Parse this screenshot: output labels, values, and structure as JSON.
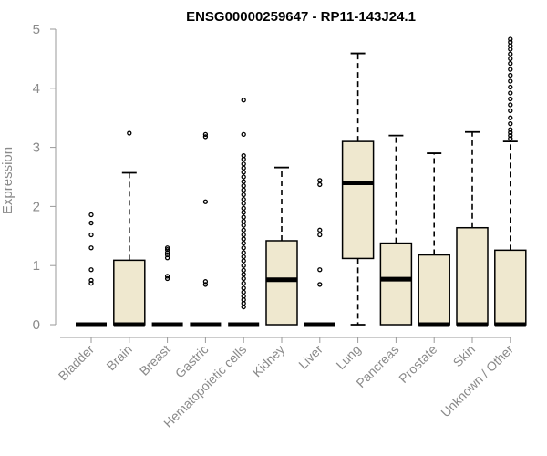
{
  "chart_data": {
    "type": "boxplot",
    "title": "ENSG00000259647 - RP11-143J24.1",
    "ylabel": "Expression",
    "xlabel": "",
    "ylim": [
      0,
      5
    ],
    "yticks": [
      0,
      1,
      2,
      3,
      4,
      5
    ],
    "box_color": "#efe8cf",
    "categories": [
      "Bladder",
      "Brain",
      "Breast",
      "Gastric",
      "Hematopoietic cells",
      "Kidney",
      "Liver",
      "Lung",
      "Pancreas",
      "Prostate",
      "Skin",
      "Unknown / Other"
    ],
    "boxes": [
      {
        "q1": 0,
        "median": 0,
        "q3": 0,
        "whisker_low": 0,
        "whisker_high": 0,
        "outliers": [
          0.7,
          0.75,
          0.93,
          1.3,
          1.52,
          1.72,
          1.86
        ]
      },
      {
        "q1": 0,
        "median": 0,
        "q3": 1.09,
        "whisker_low": 0,
        "whisker_high": 2.57,
        "outliers": [
          3.24
        ]
      },
      {
        "q1": 0,
        "median": 0,
        "q3": 0,
        "whisker_low": 0,
        "whisker_high": 0,
        "outliers": [
          0.78,
          0.82,
          1.13,
          1.18,
          1.22,
          1.27,
          1.3
        ]
      },
      {
        "q1": 0,
        "median": 0,
        "q3": 0,
        "whisker_low": 0,
        "whisker_high": 0,
        "outliers": [
          0.68,
          0.73,
          2.08,
          3.18,
          3.22
        ]
      },
      {
        "q1": 0,
        "median": 0,
        "q3": 0,
        "whisker_low": 0,
        "whisker_high": 0,
        "outliers": [
          0.3,
          0.36,
          0.42,
          0.48,
          0.55,
          0.62,
          0.7,
          0.78,
          0.85,
          0.92,
          1.0,
          1.08,
          1.15,
          1.22,
          1.3,
          1.38,
          1.45,
          1.52,
          1.6,
          1.68,
          1.75,
          1.82,
          1.9,
          1.97,
          2.05,
          2.12,
          2.2,
          2.28,
          2.35,
          2.42,
          2.5,
          2.58,
          2.65,
          2.72,
          2.8,
          2.86,
          3.22,
          3.8
        ]
      },
      {
        "q1": 0,
        "median": 0.76,
        "q3": 1.42,
        "whisker_low": 0,
        "whisker_high": 2.66,
        "outliers": []
      },
      {
        "q1": 0,
        "median": 0,
        "q3": 0,
        "whisker_low": 0,
        "whisker_high": 0,
        "outliers": [
          0.68,
          0.93,
          1.52,
          1.6,
          2.37,
          2.44
        ]
      },
      {
        "q1": 1.12,
        "median": 2.4,
        "q3": 3.1,
        "whisker_low": 0,
        "whisker_high": 4.59,
        "outliers": []
      },
      {
        "q1": 0,
        "median": 0.77,
        "q3": 1.38,
        "whisker_low": 0,
        "whisker_high": 3.2,
        "outliers": []
      },
      {
        "q1": 0,
        "median": 0,
        "q3": 1.18,
        "whisker_low": 0,
        "whisker_high": 2.9,
        "outliers": []
      },
      {
        "q1": 0,
        "median": 0,
        "q3": 1.64,
        "whisker_low": 0,
        "whisker_high": 3.26,
        "outliers": []
      },
      {
        "q1": 0,
        "median": 0,
        "q3": 1.26,
        "whisker_low": 0,
        "whisker_high": 3.1,
        "outliers": [
          3.15,
          3.2,
          3.25,
          3.3,
          3.4,
          3.5,
          3.62,
          3.72,
          3.82,
          3.92,
          4.02,
          4.12,
          4.22,
          4.32,
          4.42,
          4.5,
          4.58,
          4.66,
          4.72,
          4.78,
          4.83
        ]
      }
    ]
  }
}
